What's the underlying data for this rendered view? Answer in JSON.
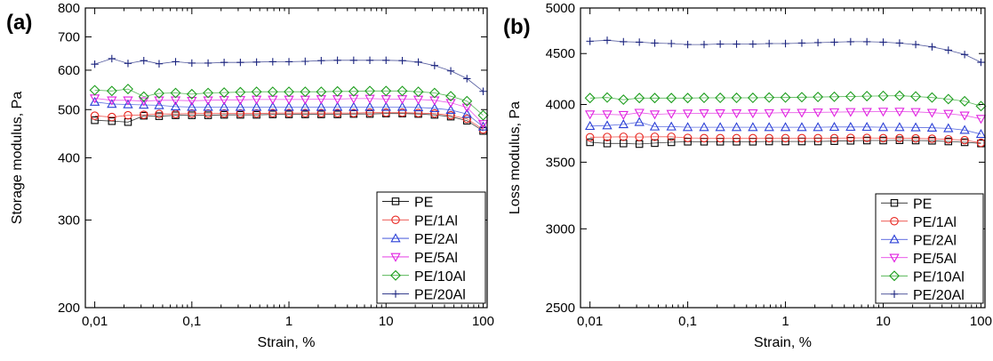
{
  "chart_data": [
    {
      "panel": "(a)",
      "type": "scatter",
      "xlabel": "Strain, %",
      "ylabel": "Storage modulus, Pa",
      "xscale": "log",
      "yscale": "log",
      "xlim": [
        0.008,
        110
      ],
      "ylim": [
        200,
        800
      ],
      "xticks": [
        0.01,
        0.1,
        1,
        10,
        100
      ],
      "xtick_labels": [
        "0,01",
        "0,1",
        "1",
        "10",
        "100"
      ],
      "yticks": [
        200,
        300,
        400,
        500,
        600,
        700,
        800
      ],
      "ytick_labels": [
        "200",
        "300",
        "400",
        "500",
        "600",
        "700",
        "800"
      ],
      "legend_position": "bottom-right",
      "x": [
        0.01,
        0.015,
        0.022,
        0.032,
        0.046,
        0.068,
        0.1,
        0.147,
        0.215,
        0.316,
        0.464,
        0.681,
        1,
        1.47,
        2.15,
        3.16,
        4.64,
        6.81,
        10,
        14.7,
        21.5,
        31.6,
        46.4,
        68.1,
        100
      ],
      "series": [
        {
          "name": "PE",
          "marker": "square",
          "color": "#000000",
          "values": [
            476,
            474,
            472,
            486,
            485,
            487,
            487,
            487,
            488,
            488,
            488,
            489,
            489,
            489,
            489,
            489,
            490,
            490,
            491,
            491,
            490,
            488,
            484,
            475,
            453
          ]
        },
        {
          "name": "PE/1Al",
          "marker": "circle",
          "color": "#e8251f",
          "values": [
            486,
            483,
            487,
            488,
            490,
            490,
            491,
            491,
            491,
            491,
            491,
            492,
            492,
            492,
            492,
            492,
            492,
            493,
            493,
            493,
            492,
            491,
            487,
            479,
            456
          ]
        },
        {
          "name": "PE/2Al",
          "marker": "triangle-up",
          "color": "#2a3fd6",
          "values": [
            518,
            513,
            512,
            511,
            510,
            507,
            506,
            506,
            506,
            506,
            506,
            506,
            506,
            506,
            506,
            506,
            506,
            506,
            506,
            506,
            505,
            503,
            499,
            490,
            462
          ]
        },
        {
          "name": "PE/5Al",
          "marker": "triangle-down",
          "color": "#e020e0",
          "values": [
            527,
            522,
            522,
            520,
            522,
            522,
            521,
            522,
            523,
            523,
            524,
            524,
            524,
            524,
            525,
            525,
            526,
            526,
            525,
            525,
            524,
            522,
            516,
            505,
            468
          ]
        },
        {
          "name": "PE/10Al",
          "marker": "diamond",
          "color": "#1e9e1e",
          "values": [
            547,
            545,
            550,
            531,
            539,
            540,
            537,
            540,
            541,
            542,
            543,
            543,
            543,
            543,
            543,
            544,
            544,
            545,
            545,
            545,
            543,
            540,
            532,
            520,
            487
          ]
        },
        {
          "name": "PE/20Al",
          "marker": "plus",
          "color": "#1a237e",
          "values": [
            617,
            633,
            619,
            627,
            618,
            624,
            620,
            620,
            622,
            622,
            623,
            624,
            624,
            625,
            627,
            628,
            628,
            628,
            628,
            627,
            623,
            613,
            598,
            577,
            544
          ]
        }
      ]
    },
    {
      "panel": "(b)",
      "type": "scatter",
      "xlabel": "Strain, %",
      "ylabel": "Loss modulus, Pa",
      "xscale": "log",
      "yscale": "log",
      "xlim": [
        0.008,
        110
      ],
      "ylim": [
        2500,
        5000
      ],
      "xticks": [
        0.01,
        0.1,
        1,
        10,
        100
      ],
      "xtick_labels": [
        "0,01",
        "0,1",
        "1",
        "10",
        "100"
      ],
      "yticks": [
        2500,
        3000,
        3500,
        4000,
        4500,
        5000
      ],
      "ytick_labels": [
        "2500",
        "3000",
        "3500",
        "4000",
        "4500",
        "5000"
      ],
      "legend_position": "bottom-right",
      "x": [
        0.01,
        0.015,
        0.022,
        0.032,
        0.046,
        0.068,
        0.1,
        0.147,
        0.215,
        0.316,
        0.464,
        0.681,
        1,
        1.47,
        2.15,
        3.16,
        4.64,
        6.81,
        10,
        14.7,
        21.5,
        31.6,
        46.4,
        68.1,
        100
      ],
      "series": [
        {
          "name": "PE",
          "marker": "square",
          "color": "#000000",
          "values": [
            3665,
            3655,
            3655,
            3650,
            3658,
            3665,
            3670,
            3670,
            3670,
            3670,
            3670,
            3672,
            3672,
            3672,
            3672,
            3675,
            3678,
            3680,
            3680,
            3682,
            3680,
            3678,
            3672,
            3665,
            3655
          ]
        },
        {
          "name": "PE/1Al",
          "marker": "circle",
          "color": "#e8251f",
          "values": [
            3708,
            3710,
            3712,
            3710,
            3712,
            3712,
            3702,
            3700,
            3700,
            3700,
            3700,
            3700,
            3700,
            3700,
            3700,
            3700,
            3702,
            3702,
            3700,
            3700,
            3698,
            3695,
            3690,
            3683,
            3660
          ]
        },
        {
          "name": "PE/2Al",
          "marker": "triangle-up",
          "color": "#2a3fd6",
          "values": [
            3805,
            3810,
            3820,
            3840,
            3800,
            3800,
            3795,
            3795,
            3795,
            3795,
            3795,
            3795,
            3795,
            3795,
            3795,
            3797,
            3797,
            3797,
            3795,
            3795,
            3793,
            3790,
            3785,
            3770,
            3735
          ]
        },
        {
          "name": "PE/5Al",
          "marker": "triangle-down",
          "color": "#e020e0",
          "values": [
            3910,
            3910,
            3905,
            3925,
            3910,
            3915,
            3918,
            3920,
            3920,
            3920,
            3920,
            3922,
            3925,
            3925,
            3928,
            3930,
            3932,
            3933,
            3935,
            3935,
            3932,
            3925,
            3915,
            3900,
            3870
          ]
        },
        {
          "name": "PE/10Al",
          "marker": "diamond",
          "color": "#1e9e1e",
          "values": [
            4060,
            4065,
            4045,
            4060,
            4060,
            4060,
            4060,
            4062,
            4062,
            4062,
            4062,
            4065,
            4065,
            4068,
            4070,
            4072,
            4075,
            4078,
            4080,
            4082,
            4075,
            4065,
            4050,
            4030,
            3985
          ]
        },
        {
          "name": "PE/20Al",
          "marker": "plus",
          "color": "#1a237e",
          "values": [
            4630,
            4640,
            4625,
            4620,
            4610,
            4605,
            4595,
            4595,
            4600,
            4600,
            4600,
            4605,
            4605,
            4610,
            4615,
            4620,
            4625,
            4625,
            4620,
            4610,
            4595,
            4570,
            4535,
            4490,
            4410
          ]
        }
      ]
    }
  ]
}
